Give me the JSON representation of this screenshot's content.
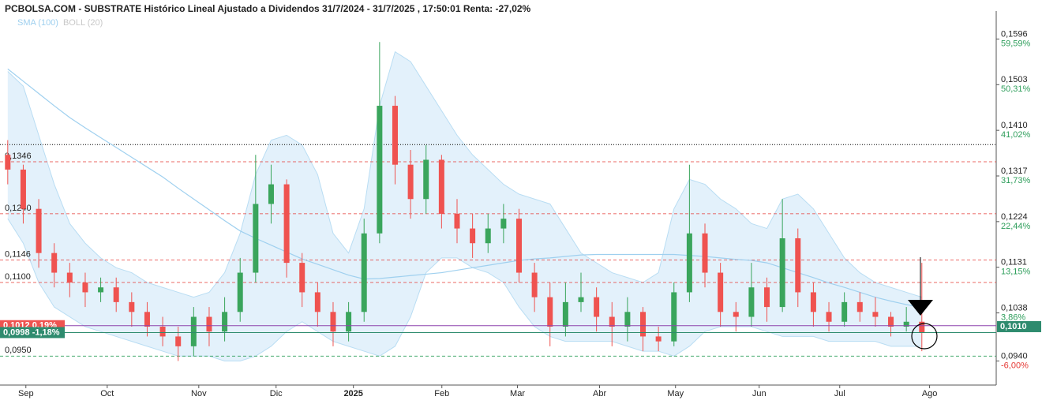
{
  "chart_data": {
    "type": "candlestick",
    "title": "PCBOLSA.COM - SUBSTRATE Histórico Lineal Ajustado a Dividendos 31/7/2024 - 31/7/2025 , 17:50:01 Renta: -27,02%",
    "up_color": "#3aa55c",
    "down_color": "#ef5350",
    "xlim": [
      -0.5,
      63.8
    ],
    "xticks": [
      {
        "value": 1.17,
        "label": "Sep"
      },
      {
        "value": 6.42,
        "label": "Oct"
      },
      {
        "value": 12.33,
        "label": "Nov"
      },
      {
        "value": 17.32,
        "label": "Dic"
      },
      {
        "value": 22.31,
        "label": "2025",
        "bold": true
      },
      {
        "value": 28.02,
        "label": "Feb"
      },
      {
        "value": 32.9,
        "label": "Mar"
      },
      {
        "value": 38.2,
        "label": "Abr"
      },
      {
        "value": 43.1,
        "label": "May"
      },
      {
        "value": 48.5,
        "label": "Jun"
      },
      {
        "value": 53.7,
        "label": "Jul"
      },
      {
        "value": 59.5,
        "label": "Ago"
      }
    ],
    "ylim": [
      0.0891,
      0.1653
    ],
    "yticks": [
      {
        "value": 0.1596,
        "label": "0,1596",
        "change": "59,59%",
        "color": "#2e9e5b"
      },
      {
        "value": 0.1503,
        "label": "0,1503",
        "change": "50,31%",
        "color": "#2e9e5b"
      },
      {
        "value": 0.141,
        "label": "0,1410",
        "change": "41,02%",
        "color": "#2e9e5b"
      },
      {
        "value": 0.1317,
        "label": "0,1317",
        "change": "31,73%",
        "color": "#2e9e5b"
      },
      {
        "value": 0.1224,
        "label": "0,1224",
        "change": "22,44%",
        "color": "#2e9e5b"
      },
      {
        "value": 0.1131,
        "label": "0,1131",
        "change": "13,15%",
        "color": "#2e9e5b"
      },
      {
        "value": 0.1038,
        "label": "0,1038",
        "change": "3,86%",
        "color": "#2e9e5b"
      },
      {
        "value": 0.094,
        "label": "0,0940",
        "change": "-6,00%",
        "color": "#e53935"
      }
    ],
    "levels": [
      {
        "value": 0.1346,
        "label": "0,1346",
        "color": "#e53935"
      },
      {
        "value": 0.124,
        "label": "0,1240",
        "color": "#e53935"
      },
      {
        "value": 0.1146,
        "label": "0,1146",
        "color": "#e53935"
      },
      {
        "value": 0.11,
        "label": "0,1100",
        "color": "#e53935"
      },
      {
        "value": 0.095,
        "label": "0,0950",
        "color": "#2e9e5b"
      }
    ],
    "reference_line": {
      "value": 0.1381,
      "color": "#000000"
    },
    "price_tags": [
      {
        "value": 0.1012,
        "label": "0,1012 0,19%",
        "color": "#ef5350"
      },
      {
        "value": 0.0998,
        "label": "0,0998 -1,18%",
        "color": "#2e8b6e"
      }
    ],
    "last_price": {
      "value": 0.101,
      "label": "0,1010",
      "color": "#2e8b6e"
    },
    "candles": {
      "open": [
        0.136,
        0.133,
        0.125,
        0.116,
        0.112,
        0.11,
        0.108,
        0.109,
        0.106,
        0.104,
        0.101,
        0.099,
        0.097,
        0.103,
        0.1,
        0.104,
        0.112,
        0.126,
        0.13,
        0.114,
        0.108,
        0.104,
        0.1,
        0.104,
        0.12,
        0.146,
        0.134,
        0.127,
        0.135,
        0.124,
        0.121,
        0.118,
        0.121,
        0.123,
        0.112,
        0.107,
        0.101,
        0.106,
        0.107,
        0.103,
        0.101,
        0.104,
        0.099,
        0.098,
        0.108,
        0.12,
        0.112,
        0.104,
        0.103,
        0.109,
        0.105,
        0.119,
        0.108,
        0.104,
        0.102,
        0.106,
        0.104,
        0.103,
        0.101,
        0.102
      ],
      "high": [
        0.139,
        0.134,
        0.127,
        0.118,
        0.114,
        0.112,
        0.111,
        0.111,
        0.108,
        0.106,
        0.103,
        0.101,
        0.105,
        0.105,
        0.107,
        0.115,
        0.136,
        0.134,
        0.131,
        0.116,
        0.11,
        0.106,
        0.106,
        0.123,
        0.159,
        0.148,
        0.137,
        0.138,
        0.136,
        0.127,
        0.124,
        0.124,
        0.126,
        0.125,
        0.114,
        0.11,
        0.11,
        0.112,
        0.109,
        0.106,
        0.107,
        0.105,
        0.101,
        0.11,
        0.134,
        0.122,
        0.114,
        0.106,
        0.114,
        0.111,
        0.127,
        0.121,
        0.11,
        0.106,
        0.108,
        0.108,
        0.107,
        0.104,
        0.105,
        0.114
      ],
      "low": [
        0.13,
        0.122,
        0.113,
        0.109,
        0.107,
        0.105,
        0.106,
        0.104,
        0.101,
        0.099,
        0.097,
        0.094,
        0.095,
        0.097,
        0.098,
        0.102,
        0.11,
        0.122,
        0.111,
        0.105,
        0.101,
        0.097,
        0.098,
        0.102,
        0.118,
        0.13,
        0.123,
        0.124,
        0.121,
        0.118,
        0.115,
        0.116,
        0.118,
        0.11,
        0.104,
        0.097,
        0.099,
        0.104,
        0.1,
        0.097,
        0.098,
        0.096,
        0.096,
        0.097,
        0.106,
        0.109,
        0.101,
        0.1,
        0.101,
        0.102,
        0.104,
        0.105,
        0.101,
        0.1,
        0.101,
        0.102,
        0.101,
        0.099,
        0.1,
        0.096
      ],
      "close": [
        0.133,
        0.125,
        0.116,
        0.112,
        0.11,
        0.108,
        0.109,
        0.106,
        0.104,
        0.101,
        0.099,
        0.097,
        0.103,
        0.1,
        0.104,
        0.112,
        0.126,
        0.13,
        0.114,
        0.108,
        0.104,
        0.1,
        0.104,
        0.12,
        0.146,
        0.134,
        0.127,
        0.135,
        0.124,
        0.121,
        0.118,
        0.121,
        0.123,
        0.112,
        0.107,
        0.101,
        0.106,
        0.107,
        0.103,
        0.101,
        0.104,
        0.099,
        0.098,
        0.108,
        0.12,
        0.112,
        0.104,
        0.103,
        0.109,
        0.105,
        0.119,
        0.108,
        0.104,
        0.102,
        0.106,
        0.104,
        0.103,
        0.101,
        0.102,
        0.0998
      ]
    },
    "series": [
      {
        "name": "SMA (100)",
        "color": "#9fd0ef",
        "values": [
          0.1535,
          0.151,
          0.1485,
          0.146,
          0.1436,
          0.1415,
          0.1395,
          0.1375,
          0.1355,
          0.1335,
          0.1315,
          0.1292,
          0.127,
          0.1248,
          0.1226,
          0.1205,
          0.119,
          0.1176,
          0.1162,
          0.1148,
          0.1137,
          0.1126,
          0.1115,
          0.1107,
          0.1108,
          0.1111,
          0.1114,
          0.1117,
          0.112,
          0.1125,
          0.113,
          0.1135,
          0.114,
          0.1145,
          0.1148,
          0.115,
          0.1153,
          0.1156,
          0.1157,
          0.1157,
          0.1157,
          0.1157,
          0.1157,
          0.1157,
          0.1155,
          0.1153,
          0.115,
          0.1147,
          0.1145,
          0.114,
          0.113,
          0.112,
          0.111,
          0.1099,
          0.109,
          0.108,
          0.107,
          0.1062,
          0.1055,
          0.1049
        ]
      },
      {
        "name": "BOLL (20)",
        "color": "#c8c8c8",
        "fill": "#e3f1fb",
        "edge": "#b9ddf3",
        "upper": [
          0.153,
          0.15,
          0.14,
          0.13,
          0.122,
          0.118,
          0.115,
          0.113,
          0.112,
          0.11,
          0.109,
          0.108,
          0.107,
          0.108,
          0.112,
          0.12,
          0.132,
          0.139,
          0.14,
          0.138,
          0.132,
          0.12,
          0.116,
          0.125,
          0.146,
          0.157,
          0.155,
          0.15,
          0.145,
          0.14,
          0.136,
          0.133,
          0.13,
          0.128,
          0.127,
          0.126,
          0.121,
          0.116,
          0.114,
          0.112,
          0.111,
          0.11,
          0.112,
          0.125,
          0.131,
          0.13,
          0.127,
          0.125,
          0.122,
          0.121,
          0.127,
          0.128,
          0.125,
          0.12,
          0.115,
          0.112,
          0.11,
          0.109,
          0.108,
          0.107
        ],
        "lower": [
          0.123,
          0.118,
          0.11,
          0.105,
          0.103,
          0.101,
          0.1,
          0.099,
          0.098,
          0.097,
          0.096,
          0.095,
          0.095,
          0.095,
          0.094,
          0.094,
          0.095,
          0.097,
          0.1,
          0.102,
          0.1,
          0.098,
          0.097,
          0.096,
          0.095,
          0.097,
          0.103,
          0.112,
          0.115,
          0.115,
          0.113,
          0.112,
          0.11,
          0.105,
          0.101,
          0.099,
          0.098,
          0.098,
          0.098,
          0.098,
          0.097,
          0.096,
          0.096,
          0.095,
          0.097,
          0.1,
          0.101,
          0.101,
          0.101,
          0.1,
          0.099,
          0.099,
          0.099,
          0.098,
          0.098,
          0.098,
          0.098,
          0.097,
          0.097,
          0.097
        ]
      }
    ]
  }
}
